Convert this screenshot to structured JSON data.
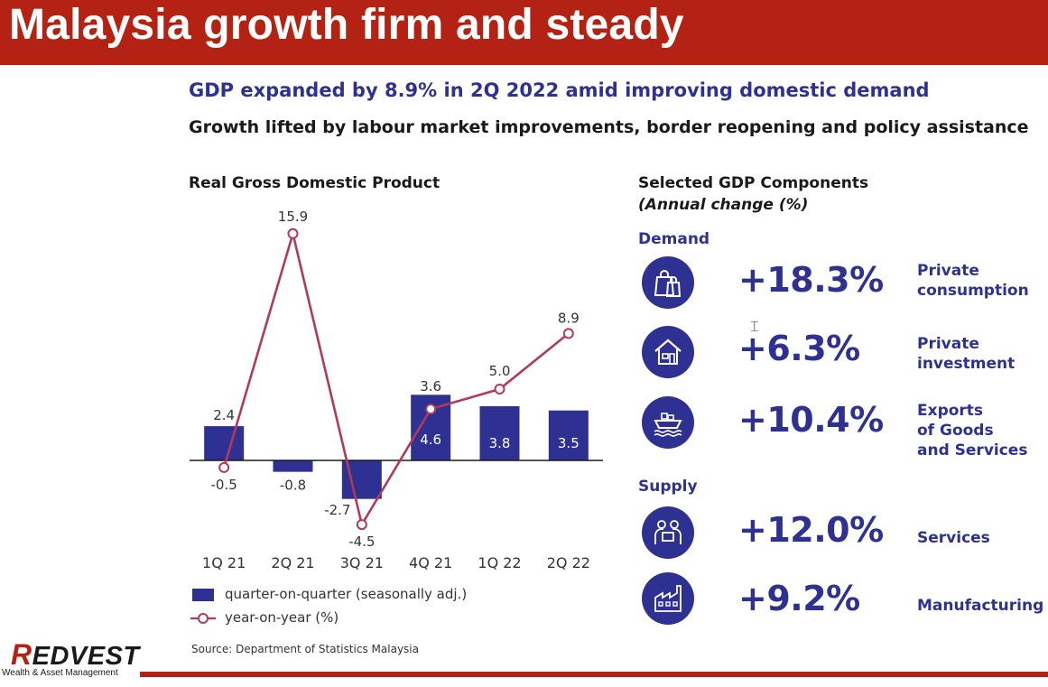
{
  "slide_title": "Malaysia growth firm and steady",
  "headline": "GDP expanded by 8.9% in 2Q 2022 amid improving domestic demand",
  "subheadline": "Growth lifted by labour market improvements, border reopening and policy assistance",
  "chart_data": {
    "type": "bar",
    "title": "Real Gross Domestic Product",
    "categories": [
      "1Q 21",
      "2Q 21",
      "3Q 21",
      "4Q 21",
      "1Q 22",
      "2Q 22"
    ],
    "series": [
      {
        "name": "quarter-on-quarter (seasonally adj.)",
        "type": "bar",
        "values": [
          2.4,
          -0.8,
          -2.7,
          4.6,
          3.8,
          3.5
        ],
        "labels": [
          "2.4",
          "-0.8",
          "-2.7",
          "4.6",
          "3.8",
          "3.5"
        ],
        "color": "#2e3192"
      },
      {
        "name": "year-on-year (%)",
        "type": "line",
        "values": [
          -0.5,
          15.9,
          -4.5,
          3.6,
          5.0,
          8.9
        ],
        "labels": [
          "-0.5",
          "15.9",
          "-4.5",
          "3.6",
          "5.0",
          "8.9"
        ],
        "color": "#b03a5b"
      }
    ],
    "ylim": [
      -5,
      17
    ],
    "grid": false,
    "legend": "bottom-left"
  },
  "source": "Source: Department of Statistics Malaysia",
  "components": {
    "title": "Selected GDP Components",
    "subtitle": "(Annual change (%)",
    "demand_label": "Demand",
    "supply_label": "Supply",
    "demand": [
      {
        "value": "+18.3%",
        "label": "Private consumption",
        "lines": [
          "Private",
          "consumption"
        ],
        "icon": "shopping-bags-icon"
      },
      {
        "value": "+6.3%",
        "label": "Private investment",
        "lines": [
          "Private",
          "investment"
        ],
        "icon": "house-icon"
      },
      {
        "value": "+10.4%",
        "label": "Exports of Goods and Services",
        "lines": [
          "Exports",
          "of Goods",
          "and Services"
        ],
        "icon": "cargo-ship-icon"
      }
    ],
    "supply": [
      {
        "value": "+12.0%",
        "label": "Services",
        "lines": [
          "Services"
        ],
        "icon": "service-workers-icon"
      },
      {
        "value": "+9.2%",
        "label": "Manufacturing",
        "lines": [
          "Manufacturing"
        ],
        "icon": "factory-icon"
      }
    ]
  },
  "logo": {
    "name": "REDVEST",
    "name_rest": "EDVEST",
    "name_initial": "R",
    "tagline": "Wealth & Asset Management"
  },
  "colors": {
    "brand_red": "#b32213",
    "navy": "#2e3192",
    "line": "#b03a5b"
  }
}
